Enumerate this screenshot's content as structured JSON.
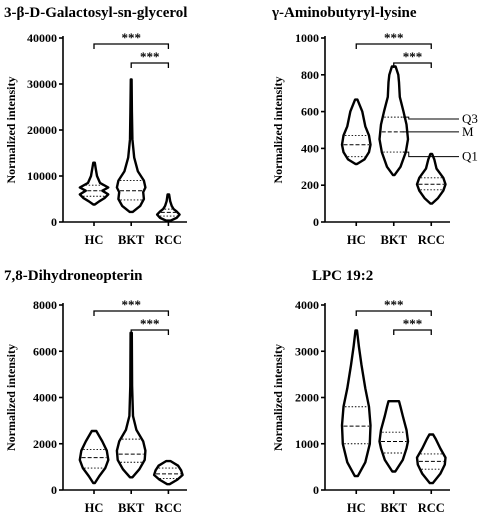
{
  "chart_data": [
    {
      "type": "violin",
      "title": "3-β-D-Galactosyl-sn-glycerol",
      "ylabel": "Normalized intensity",
      "ylim": [
        0,
        40000
      ],
      "yticks": [
        0,
        10000,
        20000,
        30000,
        40000
      ],
      "ytick_labels": [
        "0",
        "10000",
        "20000",
        "30000",
        "40000"
      ],
      "categories": [
        "HC",
        "BKT",
        "RCC"
      ],
      "groups": [
        {
          "name": "HC",
          "min": 3800,
          "q1": 5600,
          "median": 6800,
          "q3": 8000,
          "max": 12900,
          "shape": [
            [
              3800,
              0.05
            ],
            [
              4500,
              0.35
            ],
            [
              5200,
              0.7
            ],
            [
              6000,
              0.95
            ],
            [
              6800,
              0.55
            ],
            [
              7500,
              0.95
            ],
            [
              8500,
              0.4
            ],
            [
              10000,
              0.2
            ],
            [
              11500,
              0.12
            ],
            [
              12900,
              0.05
            ]
          ]
        },
        {
          "name": "BKT",
          "min": 2200,
          "q1": 4800,
          "median": 6800,
          "q3": 9000,
          "max": 31000,
          "shape": [
            [
              2200,
              0.1
            ],
            [
              3500,
              0.6
            ],
            [
              5000,
              0.85
            ],
            [
              6500,
              0.8
            ],
            [
              7500,
              0.95
            ],
            [
              9000,
              0.85
            ],
            [
              11000,
              0.45
            ],
            [
              14000,
              0.2
            ],
            [
              18000,
              0.08
            ],
            [
              24000,
              0.05
            ],
            [
              31000,
              0.03
            ]
          ]
        },
        {
          "name": "RCC",
          "min": 300,
          "q1": 1300,
          "median": 2100,
          "q3": 2800,
          "max": 6000,
          "shape": [
            [
              300,
              0.15
            ],
            [
              900,
              0.55
            ],
            [
              1600,
              0.75
            ],
            [
              2300,
              0.55
            ],
            [
              2800,
              0.35
            ],
            [
              3500,
              0.22
            ],
            [
              4500,
              0.12
            ],
            [
              6000,
              0.05
            ]
          ]
        }
      ],
      "significance": [
        {
          "from": "HC",
          "to": "RCC",
          "label": "***"
        },
        {
          "from": "BKT",
          "to": "RCC",
          "label": "***"
        }
      ]
    },
    {
      "type": "violin",
      "title": "γ-Aminobutyryl-lysine",
      "ylabel": "Normalized intensity",
      "ylim": [
        0,
        1000
      ],
      "yticks": [
        0,
        200,
        400,
        600,
        800,
        1000
      ],
      "ytick_labels": [
        "0",
        "200",
        "400",
        "600",
        "800",
        "1000"
      ],
      "categories": [
        "HC",
        "BKT",
        "RCC"
      ],
      "groups": [
        {
          "name": "HC",
          "min": 315,
          "q1": 355,
          "median": 420,
          "q3": 470,
          "max": 665,
          "shape": [
            [
              315,
              0.05
            ],
            [
              340,
              0.55
            ],
            [
              380,
              0.85
            ],
            [
              420,
              0.95
            ],
            [
              470,
              0.85
            ],
            [
              520,
              0.6
            ],
            [
              600,
              0.4
            ],
            [
              665,
              0.08
            ]
          ]
        },
        {
          "name": "BKT",
          "min": 255,
          "q1": 380,
          "median": 490,
          "q3": 570,
          "max": 845,
          "shape": [
            [
              255,
              0.05
            ],
            [
              300,
              0.45
            ],
            [
              380,
              0.8
            ],
            [
              450,
              0.95
            ],
            [
              530,
              0.85
            ],
            [
              600,
              0.65
            ],
            [
              680,
              0.4
            ],
            [
              760,
              0.35
            ],
            [
              800,
              0.3
            ],
            [
              845,
              0.12
            ]
          ]
        },
        {
          "name": "RCC",
          "min": 100,
          "q1": 175,
          "median": 205,
          "q3": 240,
          "max": 370,
          "shape": [
            [
              100,
              0.05
            ],
            [
              130,
              0.45
            ],
            [
              170,
              0.8
            ],
            [
              205,
              0.95
            ],
            [
              240,
              0.8
            ],
            [
              290,
              0.35
            ],
            [
              340,
              0.2
            ],
            [
              370,
              0.06
            ]
          ]
        }
      ],
      "significance": [
        {
          "from": "HC",
          "to": "RCC",
          "label": "***"
        },
        {
          "from": "BKT",
          "to": "RCC",
          "label": "***"
        }
      ],
      "annotations": [
        "Q3",
        "M",
        "Q1"
      ]
    },
    {
      "type": "violin",
      "title": "7,8-Dihydroneopterin",
      "ylabel": "Normalized intensity",
      "ylim": [
        0,
        8000
      ],
      "yticks": [
        0,
        2000,
        4000,
        6000,
        8000
      ],
      "ytick_labels": [
        "0",
        "2000",
        "4000",
        "6000",
        "8000"
      ],
      "categories": [
        "HC",
        "BKT",
        "RCC"
      ],
      "groups": [
        {
          "name": "HC",
          "min": 300,
          "q1": 950,
          "median": 1400,
          "q3": 1750,
          "max": 2550,
          "shape": [
            [
              300,
              0.05
            ],
            [
              600,
              0.35
            ],
            [
              950,
              0.75
            ],
            [
              1300,
              0.95
            ],
            [
              1700,
              0.85
            ],
            [
              2100,
              0.55
            ],
            [
              2550,
              0.15
            ]
          ]
        },
        {
          "name": "BKT",
          "min": 550,
          "q1": 1200,
          "median": 1550,
          "q3": 2200,
          "max": 6800,
          "shape": [
            [
              550,
              0.08
            ],
            [
              900,
              0.55
            ],
            [
              1300,
              0.9
            ],
            [
              1700,
              0.95
            ],
            [
              2100,
              0.8
            ],
            [
              2600,
              0.35
            ],
            [
              3200,
              0.12
            ],
            [
              4500,
              0.06
            ],
            [
              6800,
              0.04
            ]
          ]
        },
        {
          "name": "RCC",
          "min": 250,
          "q1": 500,
          "median": 700,
          "q3": 950,
          "max": 1250,
          "shape": [
            [
              250,
              0.08
            ],
            [
              450,
              0.6
            ],
            [
              650,
              0.95
            ],
            [
              850,
              0.85
            ],
            [
              1050,
              0.65
            ],
            [
              1250,
              0.15
            ]
          ]
        }
      ],
      "significance": [
        {
          "from": "HC",
          "to": "RCC",
          "label": "***"
        },
        {
          "from": "BKT",
          "to": "RCC",
          "label": "***"
        }
      ]
    },
    {
      "type": "violin",
      "title": "LPC 19:2",
      "ylabel": "Normalized intensity",
      "ylim": [
        0,
        4000
      ],
      "yticks": [
        0,
        1000,
        2000,
        3000,
        4000
      ],
      "ytick_labels": [
        "0",
        "1000",
        "2000",
        "3000",
        "4000"
      ],
      "categories": [
        "HC",
        "BKT",
        "RCC"
      ],
      "groups": [
        {
          "name": "HC",
          "min": 300,
          "q1": 1000,
          "median": 1380,
          "q3": 1800,
          "max": 3450,
          "shape": [
            [
              300,
              0.1
            ],
            [
              600,
              0.6
            ],
            [
              1000,
              0.9
            ],
            [
              1400,
              0.95
            ],
            [
              1800,
              0.85
            ],
            [
              2200,
              0.6
            ],
            [
              2700,
              0.35
            ],
            [
              3100,
              0.18
            ],
            [
              3450,
              0.05
            ]
          ]
        },
        {
          "name": "BKT",
          "min": 400,
          "q1": 800,
          "median": 1050,
          "q3": 1250,
          "max": 1920,
          "shape": [
            [
              400,
              0.1
            ],
            [
              650,
              0.6
            ],
            [
              900,
              0.85
            ],
            [
              1050,
              0.95
            ],
            [
              1300,
              0.85
            ],
            [
              1600,
              0.6
            ],
            [
              1800,
              0.45
            ],
            [
              1920,
              0.35
            ]
          ]
        },
        {
          "name": "RCC",
          "min": 150,
          "q1": 450,
          "median": 620,
          "q3": 780,
          "max": 1200,
          "shape": [
            [
              150,
              0.1
            ],
            [
              350,
              0.6
            ],
            [
              550,
              0.9
            ],
            [
              700,
              0.95
            ],
            [
              900,
              0.6
            ],
            [
              1100,
              0.3
            ],
            [
              1200,
              0.12
            ]
          ]
        }
      ],
      "significance": [
        {
          "from": "HC",
          "to": "RCC",
          "label": "***"
        },
        {
          "from": "BKT",
          "to": "RCC",
          "label": "***"
        }
      ]
    }
  ]
}
